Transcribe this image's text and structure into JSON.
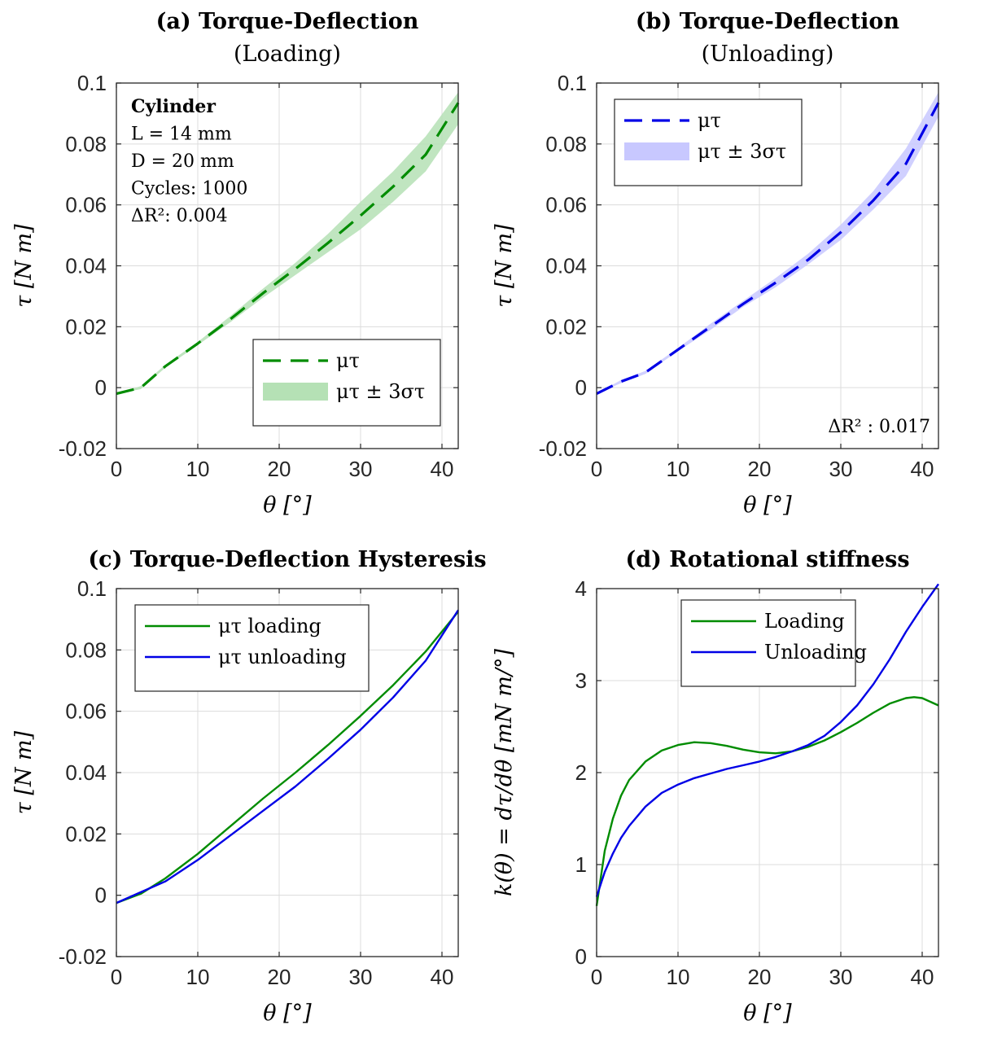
{
  "chart_data": [
    {
      "panel": "a",
      "type": "line",
      "title": "(a) Torque-Deflection",
      "subtitle": "(Loading)",
      "xlabel": "θ [°]",
      "ylabel": "τ [N m]",
      "xlim": [
        0,
        42
      ],
      "ylim": [
        -0.02,
        0.1
      ],
      "xticks": [
        "0",
        "10",
        "20",
        "30",
        "40"
      ],
      "yticks": [
        "-0.02",
        "0",
        "0.02",
        "0.04",
        "0.06",
        "0.08",
        "0.1"
      ],
      "grid": true,
      "legend_position": "bottom-right",
      "annotation": [
        "Cylinder",
        "L = 14 mm",
        "D = 20 mm",
        "Cycles: 1000",
        "ΔR²: 0.004"
      ],
      "series": [
        {
          "name": "μτ",
          "style": "dashed",
          "color": "#008c00",
          "x": [
            0,
            3,
            6,
            10,
            14,
            18,
            22,
            26,
            30,
            34,
            38,
            42
          ],
          "y": [
            -0.002,
            0,
            0.007,
            0.0145,
            0.0225,
            0.031,
            0.039,
            0.0475,
            0.0565,
            0.066,
            0.0765,
            0.0935
          ]
        },
        {
          "name": "μτ ± 3στ",
          "style": "band",
          "color": "#b5e1b5",
          "x": [
            0,
            3,
            6,
            10,
            14,
            18,
            22,
            26,
            30,
            34,
            38,
            42
          ],
          "upper": [
            -0.002,
            0.0005,
            0.0075,
            0.015,
            0.0235,
            0.0325,
            0.041,
            0.0505,
            0.061,
            0.071,
            0.0825,
            0.097
          ],
          "lower": [
            -0.002,
            -0.0005,
            0.0065,
            0.014,
            0.0215,
            0.0295,
            0.037,
            0.0445,
            0.052,
            0.061,
            0.071,
            0.0865
          ]
        }
      ]
    },
    {
      "panel": "b",
      "type": "line",
      "title": "(b) Torque-Deflection",
      "subtitle": "(Unloading)",
      "xlabel": "θ [°]",
      "ylabel": "τ [N m]",
      "xlim": [
        0,
        42
      ],
      "ylim": [
        -0.02,
        0.1
      ],
      "xticks": [
        "0",
        "10",
        "20",
        "30",
        "40"
      ],
      "yticks": [
        "-0.02",
        "0",
        "0.02",
        "0.04",
        "0.06",
        "0.08",
        "0.1"
      ],
      "grid": true,
      "legend_position": "top-left",
      "annotation": [
        "ΔR² : 0.017"
      ],
      "series": [
        {
          "name": "μτ",
          "style": "dashed",
          "color": "#0000e6",
          "x": [
            0,
            3,
            6,
            10,
            14,
            18,
            22,
            26,
            30,
            34,
            38,
            42
          ],
          "y": [
            -0.002,
            0.002,
            0.005,
            0.0125,
            0.02,
            0.0275,
            0.0345,
            0.042,
            0.051,
            0.0615,
            0.0735,
            0.0935
          ]
        },
        {
          "name": "μτ ± 3στ",
          "style": "band",
          "color": "#c8c8ff",
          "x": [
            0,
            3,
            6,
            10,
            14,
            18,
            22,
            26,
            30,
            34,
            38,
            42
          ],
          "upper": [
            -0.002,
            0.0025,
            0.0055,
            0.013,
            0.021,
            0.0285,
            0.036,
            0.044,
            0.0535,
            0.0645,
            0.0785,
            0.097
          ],
          "lower": [
            -0.002,
            0.0015,
            0.0045,
            0.012,
            0.019,
            0.0265,
            0.033,
            0.0405,
            0.0485,
            0.0585,
            0.0695,
            0.089
          ]
        }
      ]
    },
    {
      "panel": "c",
      "type": "line",
      "title": "(c) Torque-Deflection Hysteresis",
      "xlabel": "θ [°]",
      "ylabel": "τ [N m]",
      "xlim": [
        0,
        42
      ],
      "ylim": [
        -0.02,
        0.1
      ],
      "xticks": [
        "0",
        "10",
        "20",
        "30",
        "40"
      ],
      "yticks": [
        "-0.02",
        "0",
        "0.02",
        "0.04",
        "0.06",
        "0.08",
        "0.1"
      ],
      "grid": true,
      "legend_position": "top-left",
      "series": [
        {
          "name": "μτ loading",
          "style": "solid",
          "color": "#008c00",
          "x": [
            0,
            3,
            6,
            10,
            14,
            18,
            22,
            26,
            30,
            34,
            38,
            42
          ],
          "y": [
            -0.0025,
            0.0005,
            0.0055,
            0.0135,
            0.0225,
            0.0315,
            0.04,
            0.049,
            0.0585,
            0.0685,
            0.0795,
            0.0925
          ]
        },
        {
          "name": "μτ unloading",
          "style": "solid",
          "color": "#0000e6",
          "x": [
            0,
            3,
            6,
            10,
            14,
            18,
            22,
            26,
            30,
            34,
            38,
            42
          ],
          "y": [
            -0.0025,
            0.001,
            0.0045,
            0.0115,
            0.0195,
            0.0275,
            0.0355,
            0.0445,
            0.054,
            0.0645,
            0.0765,
            0.093
          ]
        }
      ]
    },
    {
      "panel": "d",
      "type": "line",
      "title": "(d) Rotational stiffness",
      "xlabel": "θ [°]",
      "ylabel": "k(θ) = dτ/dθ [mN m/°]",
      "xlim": [
        0,
        42
      ],
      "ylim": [
        0,
        4
      ],
      "xticks": [
        "0",
        "10",
        "20",
        "30",
        "40"
      ],
      "yticks": [
        "0",
        "1",
        "2",
        "3",
        "4"
      ],
      "grid": true,
      "legend_position": "top-center",
      "series": [
        {
          "name": "Loading",
          "style": "solid",
          "color": "#008c00",
          "x": [
            0,
            1,
            2,
            3,
            4,
            6,
            8,
            10,
            12,
            14,
            16,
            18,
            20,
            22,
            24,
            26,
            28,
            30,
            32,
            34,
            36,
            38,
            39,
            40,
            42
          ],
          "y": [
            0.55,
            1.15,
            1.5,
            1.75,
            1.92,
            2.12,
            2.24,
            2.3,
            2.33,
            2.32,
            2.29,
            2.25,
            2.22,
            2.21,
            2.23,
            2.28,
            2.35,
            2.44,
            2.54,
            2.65,
            2.75,
            2.81,
            2.82,
            2.81,
            2.73
          ]
        },
        {
          "name": "Unloading",
          "style": "solid",
          "color": "#0000e6",
          "x": [
            0,
            1,
            2,
            3,
            4,
            6,
            8,
            10,
            12,
            14,
            16,
            18,
            20,
            22,
            24,
            26,
            28,
            30,
            32,
            34,
            36,
            38,
            40,
            42
          ],
          "y": [
            0.65,
            0.92,
            1.12,
            1.29,
            1.42,
            1.63,
            1.78,
            1.87,
            1.94,
            1.99,
            2.04,
            2.08,
            2.12,
            2.17,
            2.23,
            2.3,
            2.4,
            2.55,
            2.73,
            2.96,
            3.23,
            3.53,
            3.8,
            4.05
          ]
        }
      ]
    }
  ]
}
